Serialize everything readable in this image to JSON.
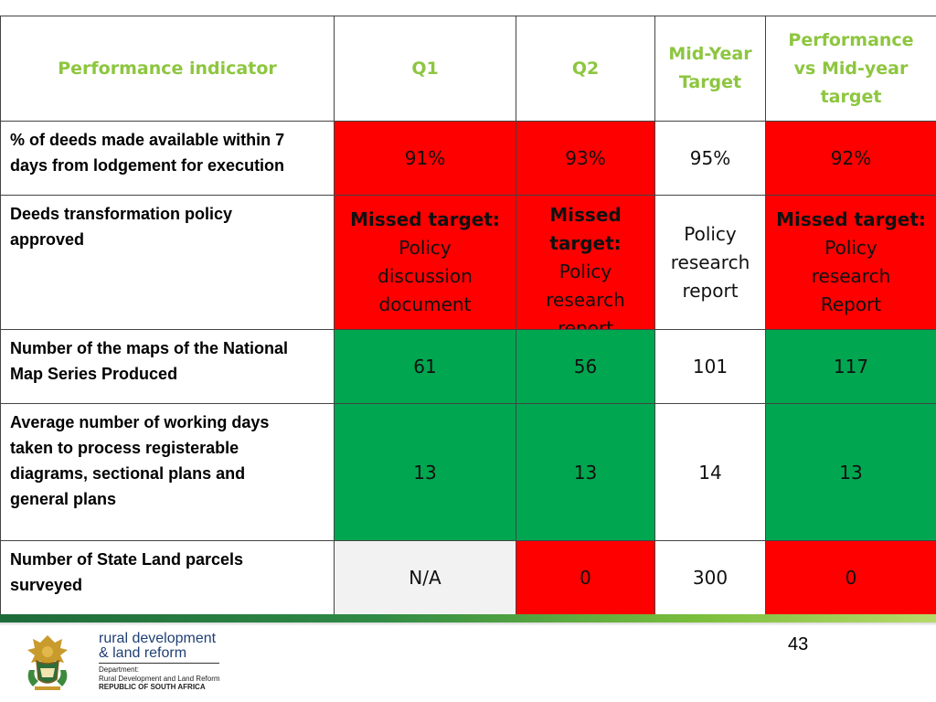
{
  "table": {
    "headers": {
      "indicator": "Performance indicator",
      "q1": "Q1",
      "q2": "Q2",
      "mid_year_target": [
        "Mid-Year",
        "Target"
      ],
      "performance_vs_mid_year": [
        "Performance",
        "vs Mid-year",
        "target"
      ]
    },
    "rows": [
      {
        "indicator": [
          "% of deeds made available within 7",
          "days from lodgement for execution"
        ],
        "q1": "91%",
        "q2": "93%",
        "mid_year_target": "95%",
        "performance": "92%"
      },
      {
        "indicator": [
          "Deeds transformation policy",
          "approved"
        ],
        "q1": {
          "missed": "Missed target:",
          "text": [
            "Policy",
            "discussion",
            "document"
          ]
        },
        "q2": {
          "missed": [
            "Missed",
            "target:"
          ],
          "text": [
            "Policy",
            "research",
            "report"
          ]
        },
        "mid_year_target": [
          "Policy",
          "research",
          "report"
        ],
        "performance": {
          "missed": "Missed target:",
          "text": [
            "Policy",
            "research",
            "Report"
          ]
        }
      },
      {
        "indicator": [
          "Number of the maps of the National",
          "Map Series Produced"
        ],
        "q1": "61",
        "q2": "56",
        "mid_year_target": "101",
        "performance": "117"
      },
      {
        "indicator": [
          "Average number of working days",
          "taken to process registerable",
          "diagrams, sectional plans and",
          "general plans"
        ],
        "q1": "13",
        "q2": "13",
        "mid_year_target": "14",
        "performance": "13"
      },
      {
        "indicator": [
          "Number of State Land parcels",
          "surveyed"
        ],
        "q1": "N/A",
        "q2": "0",
        "mid_year_target": "300",
        "performance": "0"
      }
    ]
  },
  "footer": {
    "page_number": "43",
    "logo": {
      "title_line1": "rural development",
      "title_line2": "& land reform",
      "dept_line1": "Department:",
      "dept_line2": "Rural Development and Land Reform",
      "country": "REPUBLIC OF SOUTH AFRICA"
    }
  },
  "colors": {
    "header_text": "#8dc63f",
    "missed": "#ff0000",
    "achieved": "#00a650",
    "not_applicable": "#f2f2f2",
    "logo_text": "#1f3f75"
  }
}
